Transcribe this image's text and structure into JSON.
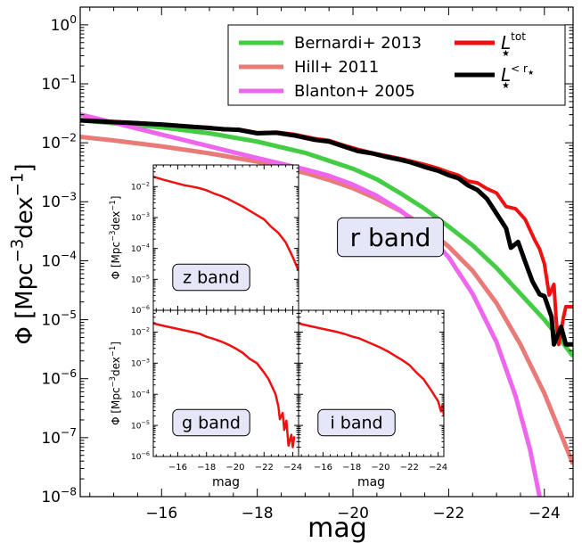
{
  "chart_data": [
    {
      "id": "main",
      "type": "line",
      "xlabel": "mag",
      "ylabel_parts": {
        "phi": "Φ",
        "open": "[Mpc",
        "exp1": "−3",
        "mid": "dex",
        "exp2": "−1",
        "close": "]"
      },
      "xlim": [
        -14.3,
        -24.6
      ],
      "ylim_log10": [
        -8,
        0.3
      ],
      "yscale": "log",
      "xticks": [
        -16,
        -18,
        -20,
        -22,
        -24
      ],
      "xtick_labels": [
        "−16",
        "−18",
        "−20",
        "−22",
        "−24"
      ],
      "ytick_exponents": [
        0,
        -1,
        -2,
        -3,
        -4,
        -5,
        -6,
        -7,
        -8
      ],
      "ytick_base": "10",
      "annotation": "r band",
      "legend_position": "top-right",
      "series": [
        {
          "name": "Bernardi+ 2013",
          "color": "#44cc44",
          "width": 5,
          "points": [
            [
              -14.3,
              -1.62
            ],
            [
              -16,
              -1.74
            ],
            [
              -17,
              -1.84
            ],
            [
              -18,
              -1.98
            ],
            [
              -19,
              -2.17
            ],
            [
              -20,
              -2.44
            ],
            [
              -20.5,
              -2.62
            ],
            [
              -21,
              -2.86
            ],
            [
              -21.5,
              -3.12
            ],
            [
              -22,
              -3.42
            ],
            [
              -22.5,
              -3.74
            ],
            [
              -23,
              -4.12
            ],
            [
              -23.5,
              -4.56
            ],
            [
              -24,
              -5.0
            ],
            [
              -24.3,
              -5.3
            ],
            [
              -24.6,
              -5.62
            ]
          ]
        },
        {
          "name": "Hill+ 2011",
          "color": "#e87a78",
          "width": 5,
          "points": [
            [
              -14.3,
              -1.9
            ],
            [
              -15,
              -1.96
            ],
            [
              -16,
              -2.06
            ],
            [
              -17,
              -2.18
            ],
            [
              -18,
              -2.32
            ],
            [
              -19,
              -2.51
            ],
            [
              -19.5,
              -2.63
            ],
            [
              -20,
              -2.77
            ],
            [
              -20.5,
              -2.95
            ],
            [
              -21,
              -3.16
            ],
            [
              -21.5,
              -3.43
            ],
            [
              -22,
              -3.76
            ],
            [
              -22.5,
              -4.17
            ],
            [
              -23,
              -4.72
            ],
            [
              -23.5,
              -5.42
            ],
            [
              -24,
              -6.25
            ],
            [
              -24.3,
              -6.85
            ],
            [
              -24.6,
              -7.45
            ]
          ]
        },
        {
          "name": "Blanton+ 2005",
          "color": "#ee66ee",
          "width": 5,
          "points": [
            [
              -14.3,
              -1.52
            ],
            [
              -15,
              -1.66
            ],
            [
              -16,
              -1.86
            ],
            [
              -17,
              -2.06
            ],
            [
              -18,
              -2.26
            ],
            [
              -19,
              -2.45
            ],
            [
              -19.5,
              -2.56
            ],
            [
              -20,
              -2.71
            ],
            [
              -20.5,
              -2.9
            ],
            [
              -21,
              -3.15
            ],
            [
              -21.5,
              -3.49
            ],
            [
              -22,
              -3.94
            ],
            [
              -22.5,
              -4.56
            ],
            [
              -23,
              -5.38
            ],
            [
              -23.4,
              -6.3
            ],
            [
              -23.7,
              -7.2
            ],
            [
              -23.9,
              -8.0
            ]
          ]
        },
        {
          "name": "L_tot",
          "color": "#ee1111",
          "width": 4,
          "points": [
            [
              -14.3,
              -1.61
            ],
            [
              -15,
              -1.64
            ],
            [
              -15.5,
              -1.66
            ],
            [
              -16,
              -1.69
            ],
            [
              -16.5,
              -1.72
            ],
            [
              -17,
              -1.74
            ],
            [
              -17.3,
              -1.78
            ],
            [
              -17.6,
              -1.77
            ],
            [
              -18,
              -1.83
            ],
            [
              -18.4,
              -1.82
            ],
            [
              -18.8,
              -1.86
            ],
            [
              -19.2,
              -1.93
            ],
            [
              -19.5,
              -1.96
            ],
            [
              -19.8,
              -2.04
            ],
            [
              -20.1,
              -2.11
            ],
            [
              -20.4,
              -2.17
            ],
            [
              -20.7,
              -2.22
            ],
            [
              -21,
              -2.27
            ],
            [
              -21.2,
              -2.31
            ],
            [
              -21.5,
              -2.37
            ],
            [
              -21.8,
              -2.44
            ],
            [
              -22,
              -2.5
            ],
            [
              -22.2,
              -2.55
            ],
            [
              -22.4,
              -2.65
            ],
            [
              -22.6,
              -2.68
            ],
            [
              -22.8,
              -2.78
            ],
            [
              -23,
              -2.85
            ],
            [
              -23.2,
              -3.08
            ],
            [
              -23.4,
              -3.12
            ],
            [
              -23.6,
              -3.3
            ],
            [
              -23.8,
              -3.65
            ],
            [
              -23.9,
              -3.8
            ],
            [
              -24,
              -4.05
            ],
            [
              -24.1,
              -4.58
            ],
            [
              -24.2,
              -4.4
            ],
            [
              -24.25,
              -5.03
            ],
            [
              -24.3,
              -5.42
            ],
            [
              -24.4,
              -4.95
            ],
            [
              -24.45,
              -4.78
            ],
            [
              -24.6,
              -4.78
            ]
          ]
        },
        {
          "name": "L_r",
          "color": "#000000",
          "width": 5,
          "points": [
            [
              -14.3,
              -1.62
            ],
            [
              -15,
              -1.65
            ],
            [
              -15.5,
              -1.67
            ],
            [
              -16,
              -1.69
            ],
            [
              -16.5,
              -1.72
            ],
            [
              -17,
              -1.75
            ],
            [
              -17.3,
              -1.77
            ],
            [
              -17.6,
              -1.78
            ],
            [
              -18,
              -1.84
            ],
            [
              -18.4,
              -1.83
            ],
            [
              -18.8,
              -1.88
            ],
            [
              -19.2,
              -1.95
            ],
            [
              -19.5,
              -1.98
            ],
            [
              -19.8,
              -2.06
            ],
            [
              -20.1,
              -2.14
            ],
            [
              -20.4,
              -2.18
            ],
            [
              -20.7,
              -2.24
            ],
            [
              -21,
              -2.29
            ],
            [
              -21.2,
              -2.33
            ],
            [
              -21.5,
              -2.41
            ],
            [
              -21.8,
              -2.48
            ],
            [
              -22,
              -2.55
            ],
            [
              -22.2,
              -2.6
            ],
            [
              -22.4,
              -2.72
            ],
            [
              -22.6,
              -2.8
            ],
            [
              -22.8,
              -2.95
            ],
            [
              -23,
              -3.2
            ],
            [
              -23.2,
              -3.45
            ],
            [
              -23.3,
              -3.78
            ],
            [
              -23.45,
              -3.68
            ],
            [
              -23.6,
              -4.02
            ],
            [
              -23.75,
              -4.35
            ],
            [
              -23.9,
              -4.57
            ],
            [
              -24,
              -4.6
            ],
            [
              -24.15,
              -4.95
            ],
            [
              -24.2,
              -5.42
            ],
            [
              -24.35,
              -5.12
            ],
            [
              -24.45,
              -5.42
            ],
            [
              -24.6,
              -5.42
            ]
          ]
        }
      ],
      "legend": [
        {
          "label": "Bernardi+ 2013",
          "color": "#44cc44"
        },
        {
          "label": "Hill+ 2011",
          "color": "#e87a78"
        },
        {
          "label": "Blanton+ 2005",
          "color": "#ee66ee"
        },
        {
          "label": "L_tot",
          "sym": "L",
          "sup": "tot",
          "sub": "★",
          "color": "#ee1111"
        },
        {
          "label": "L_<r",
          "sym": "L",
          "sup": "< r",
          "supsub": "★",
          "sub": "★",
          "color": "#000000"
        }
      ]
    },
    {
      "id": "z",
      "type": "line",
      "annotation": "z band",
      "xlim": [
        -14.3,
        -24.4
      ],
      "ylim_log10": [
        -6,
        -1.3
      ],
      "yscale": "log",
      "ytick_exponents": [
        -2,
        -3,
        -4,
        -5,
        -6
      ],
      "xticks": [],
      "ylabel_parts": {
        "phi": "Φ",
        "open": "[Mpc",
        "exp1": "−3",
        "mid": "dex",
        "exp2": "−1",
        "close": "]"
      },
      "series": [
        {
          "color": "#ee1111",
          "points": [
            [
              -14.3,
              -1.68
            ],
            [
              -15,
              -1.78
            ],
            [
              -16,
              -1.9
            ],
            [
              -16.5,
              -1.96
            ],
            [
              -17,
              -2.0
            ],
            [
              -17.5,
              -2.05
            ],
            [
              -18,
              -2.12
            ],
            [
              -18.5,
              -2.22
            ],
            [
              -19,
              -2.3
            ],
            [
              -19.5,
              -2.4
            ],
            [
              -20,
              -2.52
            ],
            [
              -20.5,
              -2.64
            ],
            [
              -21,
              -2.78
            ],
            [
              -21.5,
              -2.92
            ],
            [
              -22,
              -3.06
            ],
            [
              -22.5,
              -3.3
            ],
            [
              -23,
              -3.5
            ],
            [
              -23.5,
              -3.8
            ],
            [
              -24,
              -4.28
            ],
            [
              -24.4,
              -4.72
            ]
          ]
        }
      ]
    },
    {
      "id": "g",
      "type": "line",
      "annotation": "g band",
      "xlabel": "mag",
      "xlim": [
        -14.3,
        -24.4
      ],
      "ylim_log10": [
        -6,
        -1.3
      ],
      "yscale": "log",
      "ytick_exponents": [
        -2,
        -3,
        -4,
        -5,
        -6
      ],
      "xticks": [
        -16,
        -18,
        -20,
        -22,
        -24
      ],
      "xtick_labels": [
        "−16",
        "−18",
        "−20",
        "−22",
        "−24"
      ],
      "ylabel_parts": {
        "phi": "Φ",
        "open": "[Mpc",
        "exp1": "−3",
        "mid": "dex",
        "exp2": "−1",
        "close": "]"
      },
      "series": [
        {
          "color": "#ee1111",
          "points": [
            [
              -14.3,
              -1.72
            ],
            [
              -15,
              -1.8
            ],
            [
              -16,
              -1.9
            ],
            [
              -17,
              -2.0
            ],
            [
              -17.5,
              -2.05
            ],
            [
              -18,
              -2.15
            ],
            [
              -18.5,
              -2.22
            ],
            [
              -19,
              -2.3
            ],
            [
              -19.5,
              -2.4
            ],
            [
              -20,
              -2.52
            ],
            [
              -20.5,
              -2.66
            ],
            [
              -21,
              -2.86
            ],
            [
              -21.5,
              -3.0
            ],
            [
              -22,
              -3.3
            ],
            [
              -22.3,
              -3.5
            ],
            [
              -22.6,
              -3.8
            ],
            [
              -22.8,
              -4.0
            ],
            [
              -23,
              -4.4
            ],
            [
              -23.1,
              -4.8
            ],
            [
              -23.3,
              -4.6
            ],
            [
              -23.4,
              -5.15
            ],
            [
              -23.55,
              -4.85
            ],
            [
              -23.7,
              -5.65
            ],
            [
              -23.9,
              -5.3
            ],
            [
              -24.0,
              -5.7
            ],
            [
              -24.1,
              -5.35
            ]
          ]
        }
      ]
    },
    {
      "id": "i",
      "type": "line",
      "annotation": "i band",
      "xlim": [
        -14.3,
        -24.4
      ],
      "ylim_log10": [
        -6,
        -1.3
      ],
      "yscale": "log",
      "xticks": [
        -16,
        -18,
        -20,
        -22,
        -24
      ],
      "xtick_labels": [
        "−16",
        "−18",
        "−20",
        "−22",
        "−24"
      ],
      "xlabel": "mag",
      "series": [
        {
          "color": "#ee1111",
          "points": [
            [
              -14.3,
              -1.72
            ],
            [
              -15,
              -1.8
            ],
            [
              -16,
              -1.9
            ],
            [
              -17,
              -2.0
            ],
            [
              -17.5,
              -2.06
            ],
            [
              -18,
              -2.14
            ],
            [
              -18.5,
              -2.2
            ],
            [
              -19,
              -2.3
            ],
            [
              -19.5,
              -2.4
            ],
            [
              -20,
              -2.5
            ],
            [
              -20.5,
              -2.62
            ],
            [
              -21,
              -2.76
            ],
            [
              -21.5,
              -2.9
            ],
            [
              -22,
              -3.06
            ],
            [
              -22.5,
              -3.3
            ],
            [
              -23,
              -3.52
            ],
            [
              -23.5,
              -3.86
            ],
            [
              -24,
              -4.22
            ],
            [
              -24.2,
              -4.55
            ],
            [
              -24.3,
              -4.35
            ],
            [
              -24.4,
              -4.68
            ]
          ]
        }
      ]
    }
  ]
}
